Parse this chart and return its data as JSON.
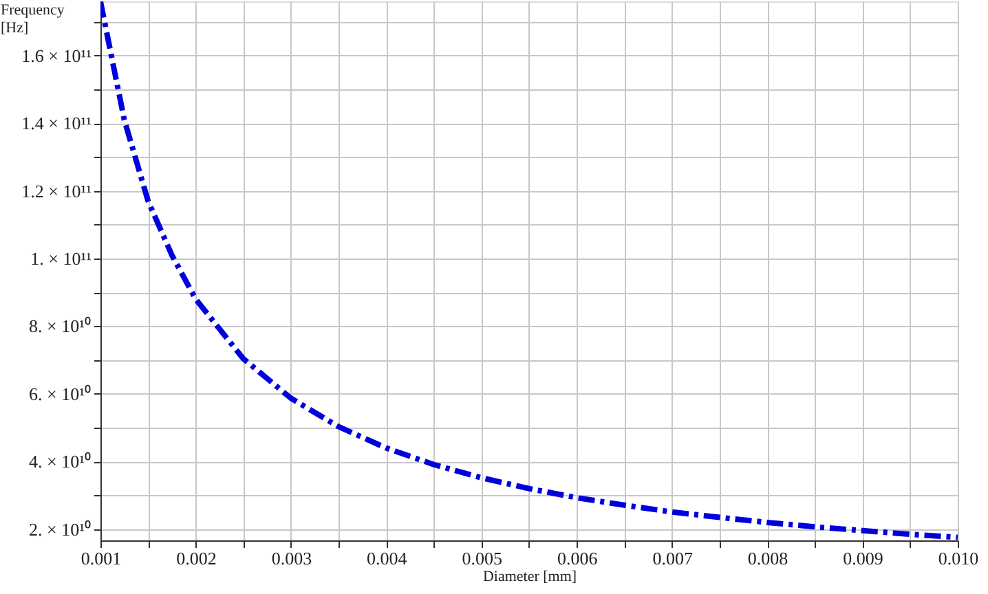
{
  "chart_data": {
    "type": "line",
    "xlabel": "Diameter [mm]",
    "ylabel": "Frequency\n[Hz]",
    "x": [
      0.001,
      0.00125,
      0.0015,
      0.00175,
      0.002,
      0.0025,
      0.003,
      0.0035,
      0.004,
      0.0045,
      0.005,
      0.0055,
      0.006,
      0.0065,
      0.007,
      0.0075,
      0.008,
      0.0085,
      0.009,
      0.0095,
      0.01
    ],
    "series": [
      {
        "color": "#0000dd",
        "values": [
          176000000000.0,
          141000000000.0,
          117000000000.0,
          101000000000.0,
          88000000000.0,
          70400000000.0,
          58700000000.0,
          50300000000.0,
          44000000000.0,
          39100000000.0,
          35200000000.0,
          32000000000.0,
          29300000000.0,
          27100000000.0,
          25100000000.0,
          23500000000.0,
          22000000000.0,
          20700000000.0,
          19600000000.0,
          18500000000.0,
          17600000000.0
        ]
      }
    ],
    "xlim": [
      0.001,
      0.01
    ],
    "xticks": [
      0.001,
      {
        "value": 0.0015,
        "label": null
      },
      0.002,
      {
        "value": 0.0025,
        "label": null
      },
      0.003,
      {
        "value": 0.0035,
        "label": null
      },
      0.004,
      {
        "value": 0.0045,
        "label": null
      },
      0.005,
      {
        "value": 0.0055,
        "label": null
      },
      0.006,
      {
        "value": 0.0065,
        "label": null
      },
      0.007,
      {
        "value": 0.0075,
        "label": null
      },
      0.008,
      {
        "value": 0.0085,
        "label": null
      },
      0.009,
      {
        "value": 0.0095,
        "label": null
      },
      {
        "value": 0.01,
        "label": "0.010"
      }
    ],
    "ylim": [
      16700000000.0,
      176000000000.0
    ],
    "yticks": [
      {
        "value": 20000000000.0,
        "label": "2. × 10¹⁰"
      },
      {
        "value": 30000000000.0,
        "label": null
      },
      {
        "value": 40000000000.0,
        "label": "4. × 10¹⁰"
      },
      {
        "value": 50000000000.0,
        "label": null
      },
      {
        "value": 60000000000.0,
        "label": "6. × 10¹⁰"
      },
      {
        "value": 70000000000.0,
        "label": null
      },
      {
        "value": 80000000000.0,
        "label": "8. × 10¹⁰"
      },
      {
        "value": 90000000000.0,
        "label": null
      },
      {
        "value": 100000000000.0,
        "label": "1. × 10¹¹"
      },
      {
        "value": 110000000000.0,
        "label": null
      },
      {
        "value": 120000000000.0,
        "label": "1.2 × 10¹¹"
      },
      {
        "value": 130000000000.0,
        "label": null
      },
      {
        "value": 140000000000.0,
        "label": "1.4 × 10¹¹"
      },
      {
        "value": 150000000000.0,
        "label": null
      },
      {
        "value": 160000000000.0,
        "label": "1.6 × 10¹¹"
      },
      {
        "value": 170000000000.0,
        "label": null
      }
    ],
    "grid": true,
    "line_style": "dashed",
    "marker": "none"
  }
}
